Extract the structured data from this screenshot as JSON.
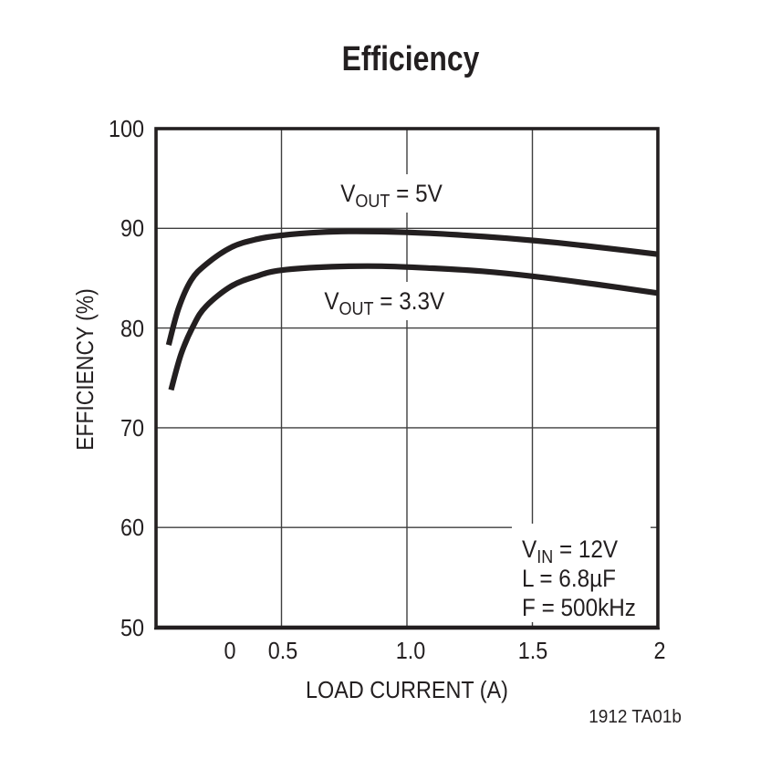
{
  "chart_data": {
    "type": "line",
    "title": "Efficiency",
    "xlabel": "LOAD CURRENT (A)",
    "ylabel": "EFFICIENCY (%)",
    "xlim": [
      0,
      2
    ],
    "ylim": [
      50,
      100
    ],
    "grid": true,
    "legend_position": "inline-curve-labels",
    "x_ticks": [
      {
        "value": 0,
        "label": "0"
      },
      {
        "value": 0.5,
        "label": "0.5"
      },
      {
        "value": 1.0,
        "label": "1.0"
      },
      {
        "value": 1.5,
        "label": "1.5"
      },
      {
        "value": 2.0,
        "label": "2"
      }
    ],
    "y_ticks": [
      {
        "value": 100,
        "label": "100"
      },
      {
        "value": 90,
        "label": "90"
      },
      {
        "value": 80,
        "label": "80"
      },
      {
        "value": 70,
        "label": "70"
      },
      {
        "value": 60,
        "label": "60"
      },
      {
        "value": 50,
        "label": "50"
      }
    ],
    "series": [
      {
        "name": "VOUT = 5V",
        "label": {
          "pre": "V",
          "sub": "OUT",
          "post": " = 5V"
        },
        "color": "#231f20",
        "points": [
          [
            0.05,
            78.3
          ],
          [
            0.09,
            82.0
          ],
          [
            0.14,
            84.8
          ],
          [
            0.2,
            86.4
          ],
          [
            0.3,
            88.1
          ],
          [
            0.4,
            88.9
          ],
          [
            0.5,
            89.3
          ],
          [
            0.65,
            89.6
          ],
          [
            0.8,
            89.7
          ],
          [
            1.0,
            89.6
          ],
          [
            1.2,
            89.35
          ],
          [
            1.4,
            89.0
          ],
          [
            1.6,
            88.55
          ],
          [
            1.8,
            88.0
          ],
          [
            2.0,
            87.4
          ]
        ]
      },
      {
        "name": "VOUT = 3.3V",
        "label": {
          "pre": "V",
          "sub": "OUT",
          "post": " = 3.3V"
        },
        "color": "#231f20",
        "points": [
          [
            0.06,
            73.8
          ],
          [
            0.1,
            77.4
          ],
          [
            0.15,
            80.3
          ],
          [
            0.2,
            82.2
          ],
          [
            0.3,
            84.2
          ],
          [
            0.4,
            85.2
          ],
          [
            0.5,
            85.8
          ],
          [
            0.7,
            86.15
          ],
          [
            0.9,
            86.2
          ],
          [
            1.1,
            86.0
          ],
          [
            1.3,
            85.7
          ],
          [
            1.5,
            85.2
          ],
          [
            1.75,
            84.4
          ],
          [
            2.0,
            83.5
          ]
        ]
      }
    ],
    "annotation_lines": [
      {
        "pre": "V",
        "sub": "IN",
        "post": " = 12V"
      },
      {
        "pre": "L",
        "sub": "",
        "post": " = 6.8µF"
      },
      {
        "pre": "F",
        "sub": "",
        "post": " = 500kHz"
      }
    ],
    "watermark": "1912 TA01b"
  },
  "colors": {
    "ink": "#231f20",
    "grid": "#3f3f3f",
    "background": "#ffffff"
  }
}
